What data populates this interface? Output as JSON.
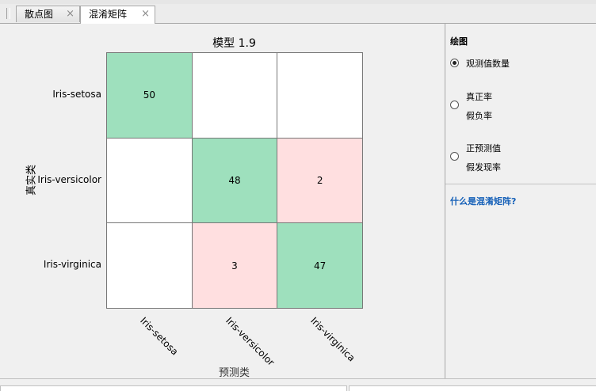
{
  "tabs": [
    {
      "label": "散点图",
      "close": "×",
      "active": false
    },
    {
      "label": "混淆矩阵",
      "close": "×",
      "active": true
    }
  ],
  "chart_data": {
    "type": "heatmap",
    "title": "模型 1.9",
    "xlabel": "预测类",
    "ylabel": "真实类",
    "row_labels": [
      "Iris-setosa",
      "Iris-versicolor",
      "Iris-virginica"
    ],
    "col_labels": [
      "Iris-setosa",
      "Iris-versicolor",
      "Iris-virginica"
    ],
    "values": [
      [
        50,
        null,
        null
      ],
      [
        null,
        48,
        2
      ],
      [
        null,
        3,
        47
      ]
    ],
    "colors": {
      "correct": "#9ee0bd",
      "incorrect": "#ffdfe0",
      "empty": "#ffffff"
    }
  },
  "panel": {
    "heading": "绘图",
    "options": [
      {
        "lines": [
          "观测值数量"
        ],
        "checked": true
      },
      {
        "lines": [
          "真正率",
          "假负率"
        ],
        "checked": false
      },
      {
        "lines": [
          "正预测值",
          "假发现率"
        ],
        "checked": false
      }
    ],
    "help_link": "什么是混淆矩阵?"
  }
}
